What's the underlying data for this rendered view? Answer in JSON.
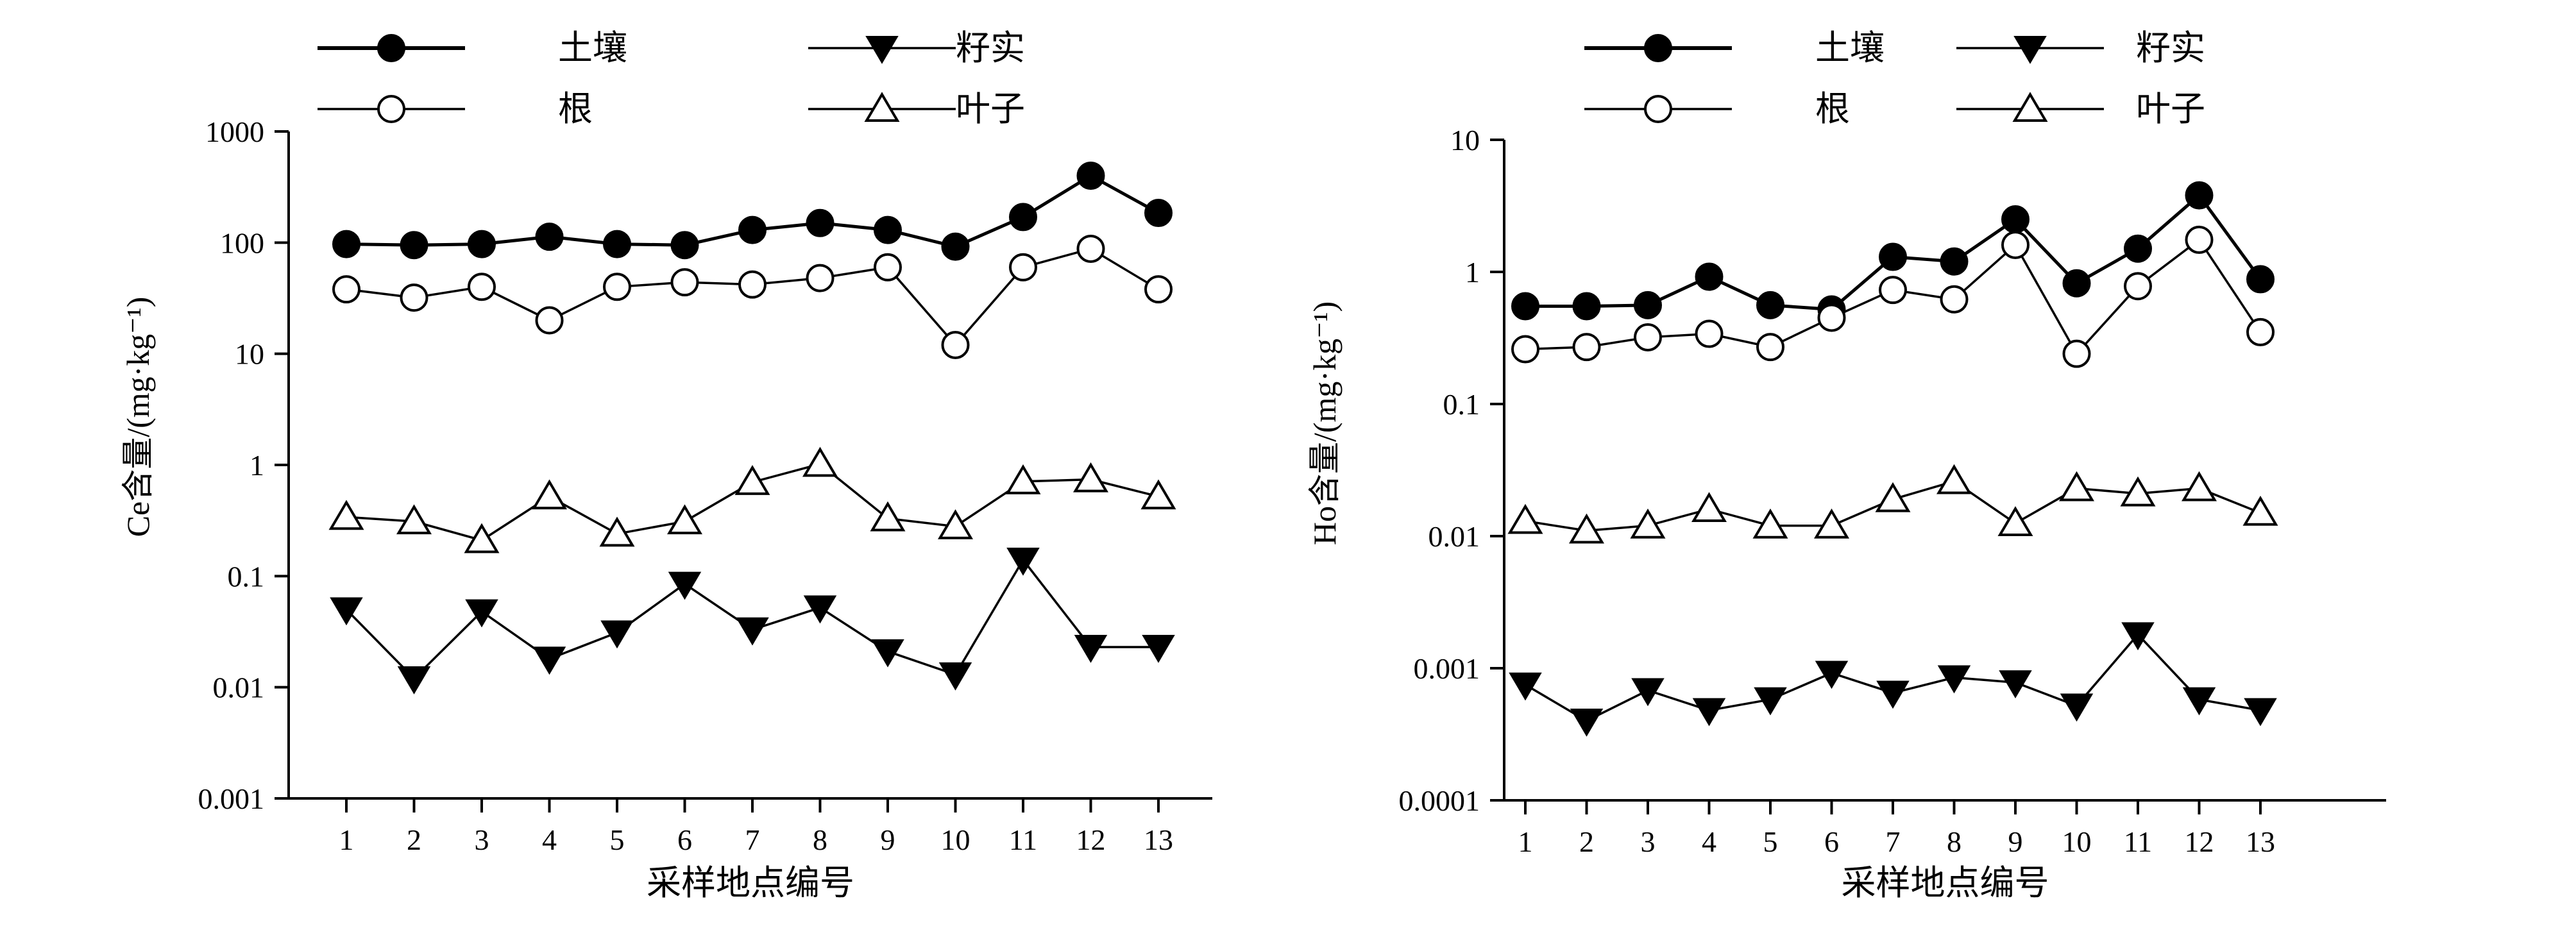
{
  "chart_data": [
    {
      "type": "line",
      "yscale": "log",
      "xlabel": "采样地点编号",
      "ylabel": "Ce含量/(mg·kg⁻¹)",
      "ylim": [
        0.001,
        1000
      ],
      "yticks": [
        "0.001",
        "0.01",
        "0.1",
        "1",
        "10",
        "100",
        "1000"
      ],
      "categories": [
        "1",
        "2",
        "3",
        "4",
        "5",
        "6",
        "7",
        "8",
        "9",
        "10",
        "11",
        "12",
        "13"
      ],
      "legend": {
        "position": "top",
        "columns": 2
      },
      "series": [
        {
          "name": "土壤",
          "marker": "filled-circle",
          "values": [
            97,
            95,
            97,
            113,
            97,
            95,
            130,
            150,
            130,
            92,
            170,
            400,
            185
          ]
        },
        {
          "name": "根",
          "marker": "open-circle",
          "values": [
            38,
            32,
            40,
            20,
            40,
            44,
            42,
            48,
            60,
            12,
            60,
            88,
            38
          ]
        },
        {
          "name": "籽实",
          "marker": "filled-triangle-down",
          "values": [
            0.05,
            0.012,
            0.048,
            0.018,
            0.031,
            0.085,
            0.033,
            0.052,
            0.021,
            0.013,
            0.14,
            0.023,
            0.023
          ]
        },
        {
          "name": "叶子",
          "marker": "open-triangle-up",
          "values": [
            0.34,
            0.31,
            0.21,
            0.52,
            0.24,
            0.31,
            0.7,
            1.02,
            0.33,
            0.28,
            0.71,
            0.74,
            0.52
          ]
        }
      ]
    },
    {
      "type": "line",
      "yscale": "log",
      "xlabel": "采样地点编号",
      "ylabel": "Ho含量/(mg·kg⁻¹)",
      "ylim": [
        0.0001,
        10
      ],
      "yticks": [
        "0.0001",
        "0.001",
        "0.01",
        "0.1",
        "1",
        "10"
      ],
      "categories": [
        "1",
        "2",
        "3",
        "4",
        "5",
        "6",
        "7",
        "8",
        "9",
        "10",
        "11",
        "12",
        "13"
      ],
      "legend": {
        "position": "top",
        "columns": 2
      },
      "series": [
        {
          "name": "土壤",
          "marker": "filled-circle",
          "values": [
            0.55,
            0.55,
            0.56,
            0.92,
            0.56,
            0.52,
            1.3,
            1.2,
            2.5,
            0.82,
            1.5,
            3.8,
            0.88
          ]
        },
        {
          "name": "根",
          "marker": "open-circle",
          "values": [
            0.26,
            0.27,
            0.32,
            0.34,
            0.27,
            0.45,
            0.73,
            0.62,
            1.6,
            0.24,
            0.78,
            1.75,
            0.35
          ]
        },
        {
          "name": "籽实",
          "marker": "filled-triangle-down",
          "values": [
            0.00075,
            0.0004,
            0.00068,
            0.00048,
            0.00058,
            0.00092,
            0.00065,
            0.00085,
            0.00078,
            0.00052,
            0.0018,
            0.00058,
            0.00048
          ]
        },
        {
          "name": "叶子",
          "marker": "open-triangle-up",
          "values": [
            0.013,
            0.011,
            0.012,
            0.016,
            0.012,
            0.012,
            0.019,
            0.026,
            0.0125,
            0.023,
            0.021,
            0.023,
            0.015
          ]
        }
      ]
    }
  ]
}
